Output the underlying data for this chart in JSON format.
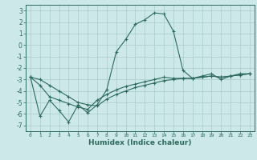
{
  "xlabel": "Humidex (Indice chaleur)",
  "x": [
    0,
    1,
    2,
    3,
    4,
    5,
    6,
    7,
    8,
    9,
    10,
    11,
    12,
    13,
    14,
    15,
    16,
    17,
    18,
    19,
    20,
    21,
    22,
    23
  ],
  "line1": [
    -2.8,
    -6.2,
    -4.8,
    -5.7,
    -6.7,
    -5.2,
    -5.9,
    -5.2,
    -3.9,
    -0.6,
    0.5,
    1.8,
    2.2,
    2.8,
    2.7,
    1.2,
    -2.2,
    -2.9,
    -2.7,
    -2.5,
    -3.0,
    -2.7,
    -2.5,
    -2.5
  ],
  "line2": [
    -2.8,
    -3.5,
    -4.5,
    -4.8,
    -5.1,
    -5.4,
    -5.6,
    -4.8,
    -4.3,
    -3.9,
    -3.6,
    -3.4,
    -3.2,
    -3.0,
    -2.8,
    -2.9,
    -2.9,
    -2.9,
    -2.8,
    -2.7,
    -2.8,
    -2.7,
    -2.6,
    -2.5
  ],
  "line3": [
    -2.8,
    -3.0,
    -3.5,
    -4.0,
    -4.5,
    -5.0,
    -5.2,
    -5.3,
    -4.7,
    -4.3,
    -4.0,
    -3.7,
    -3.5,
    -3.3,
    -3.1,
    -3.0,
    -2.9,
    -2.9,
    -2.8,
    -2.7,
    -2.8,
    -2.7,
    -2.6,
    -2.5
  ],
  "color": "#2E6B5E",
  "bg_color": "#cce8e8",
  "grid_color": "#aacccc",
  "ylim": [
    -7.5,
    3.5
  ],
  "xlim": [
    -0.5,
    23.5
  ],
  "yticks": [
    -7,
    -6,
    -5,
    -4,
    -3,
    -2,
    -1,
    0,
    1,
    2,
    3
  ]
}
